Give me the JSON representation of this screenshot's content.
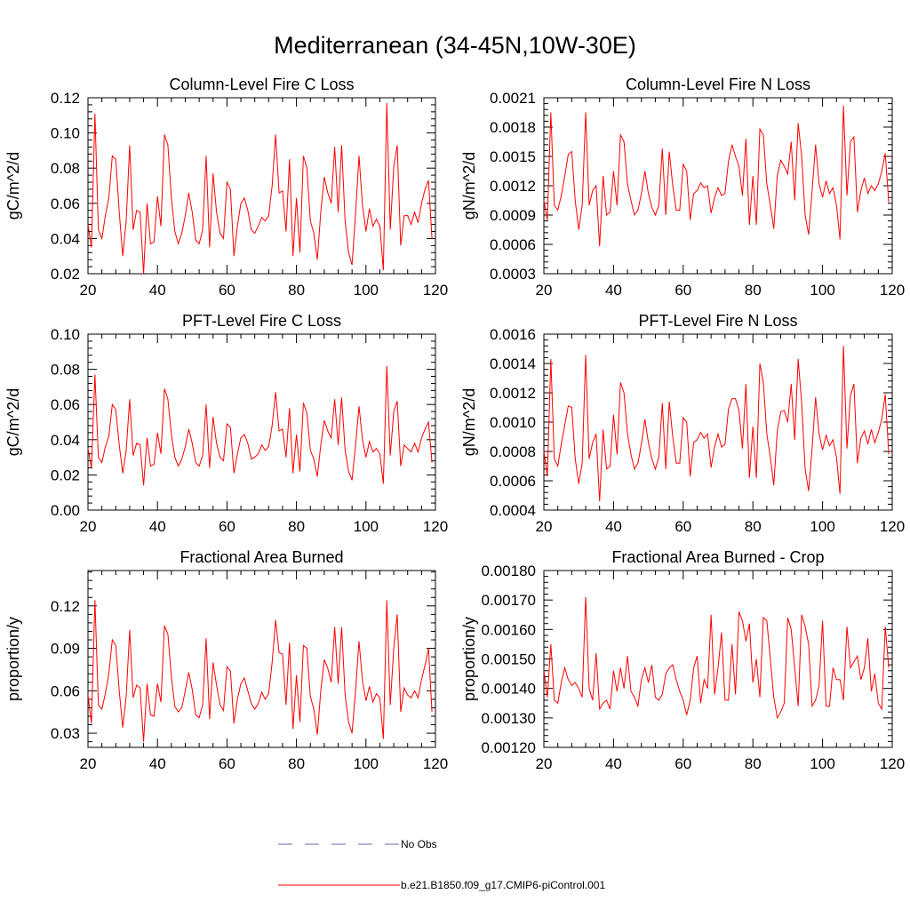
{
  "title": "Mediterranean (34-45N,10W-30E)",
  "legend": [
    {
      "label": "No Obs",
      "color": "#6a6ab0",
      "style": "dashed"
    },
    {
      "label": "b.e21.B1850.f09_g17.CMIP6-piControl.001",
      "color": "#ff0000",
      "style": "solid"
    }
  ],
  "chart_data": [
    {
      "type": "line",
      "title": "Column-Level Fire C Loss",
      "ylabel": "gC/m^2/d",
      "xlim": [
        20,
        120
      ],
      "ylim": [
        0.02,
        0.12
      ],
      "xticks": [
        20,
        40,
        60,
        80,
        100,
        120
      ],
      "yticks": [
        0.02,
        0.04,
        0.06,
        0.08,
        0.1,
        0.12
      ],
      "ytick_labels": [
        "0.02",
        "0.04",
        "0.06",
        "0.08",
        "0.10",
        "0.12"
      ],
      "color": "#ff0000",
      "x_start": 20,
      "values": [
        0.048,
        0.035,
        0.111,
        0.045,
        0.04,
        0.053,
        0.063,
        0.087,
        0.085,
        0.055,
        0.03,
        0.05,
        0.093,
        0.045,
        0.056,
        0.055,
        0.02,
        0.06,
        0.037,
        0.038,
        0.064,
        0.047,
        0.099,
        0.093,
        0.063,
        0.044,
        0.037,
        0.043,
        0.053,
        0.066,
        0.055,
        0.039,
        0.037,
        0.045,
        0.087,
        0.035,
        0.077,
        0.055,
        0.043,
        0.04,
        0.072,
        0.068,
        0.03,
        0.047,
        0.06,
        0.063,
        0.056,
        0.045,
        0.043,
        0.047,
        0.052,
        0.05,
        0.053,
        0.07,
        0.099,
        0.066,
        0.067,
        0.044,
        0.085,
        0.03,
        0.063,
        0.032,
        0.087,
        0.08,
        0.05,
        0.043,
        0.028,
        0.055,
        0.075,
        0.066,
        0.06,
        0.092,
        0.055,
        0.093,
        0.05,
        0.032,
        0.025,
        0.054,
        0.087,
        0.059,
        0.044,
        0.057,
        0.047,
        0.051,
        0.047,
        0.022,
        0.117,
        0.045,
        0.081,
        0.093,
        0.036,
        0.053,
        0.053,
        0.048,
        0.055,
        0.049,
        0.06,
        0.068,
        0.073,
        0.04
      ]
    },
    {
      "type": "line",
      "title": "Column-Level Fire N Loss",
      "ylabel": "gN/m^2/d",
      "xlim": [
        20,
        120
      ],
      "ylim": [
        0.0003,
        0.0021
      ],
      "xticks": [
        20,
        40,
        60,
        80,
        100,
        120
      ],
      "yticks": [
        0.0003,
        0.0006,
        0.0009,
        0.0012,
        0.0015,
        0.0018,
        0.0021
      ],
      "ytick_labels": [
        "0.0003",
        "0.0006",
        "0.0009",
        "0.0012",
        "0.0015",
        "0.0018",
        "0.0021"
      ],
      "color": "#ff0000",
      "x_start": 20,
      "values": [
        0.00105,
        0.00085,
        0.00195,
        0.001,
        0.00095,
        0.0011,
        0.0013,
        0.00152,
        0.00155,
        0.00105,
        0.00075,
        0.001,
        0.00195,
        0.001,
        0.00115,
        0.0012,
        0.00058,
        0.0013,
        0.0009,
        0.00093,
        0.00135,
        0.001,
        0.00172,
        0.00165,
        0.00122,
        0.00105,
        0.0009,
        0.00095,
        0.00112,
        0.00135,
        0.00112,
        0.00098,
        0.0009,
        0.001,
        0.00158,
        0.0009,
        0.00155,
        0.0012,
        0.00095,
        0.00095,
        0.00142,
        0.00135,
        0.00085,
        0.00112,
        0.00115,
        0.00123,
        0.00118,
        0.0012,
        0.00092,
        0.00108,
        0.00118,
        0.0011,
        0.00112,
        0.00145,
        0.00162,
        0.0015,
        0.0014,
        0.0011,
        0.00168,
        0.0008,
        0.0013,
        0.0008,
        0.00178,
        0.00172,
        0.00122,
        0.001,
        0.00076,
        0.0013,
        0.00146,
        0.0014,
        0.00132,
        0.00165,
        0.00105,
        0.00184,
        0.0015,
        0.0009,
        0.0007,
        0.00115,
        0.00162,
        0.00122,
        0.00108,
        0.00125,
        0.00112,
        0.00118,
        0.001,
        0.00065,
        0.00202,
        0.0011,
        0.00165,
        0.0017,
        0.00093,
        0.00115,
        0.00128,
        0.00112,
        0.0012,
        0.00115,
        0.00122,
        0.00135,
        0.00153,
        0.00103
      ]
    },
    {
      "type": "line",
      "title": "PFT-Level Fire C Loss",
      "ylabel": "gC/m^2/d",
      "xlim": [
        20,
        120
      ],
      "ylim": [
        0.0,
        0.1
      ],
      "xticks": [
        20,
        40,
        60,
        80,
        100,
        120
      ],
      "yticks": [
        0.0,
        0.02,
        0.04,
        0.06,
        0.08,
        0.1
      ],
      "ytick_labels": [
        "0.00",
        "0.02",
        "0.04",
        "0.06",
        "0.08",
        "0.10"
      ],
      "color": "#ff0000",
      "x_start": 20,
      "values": [
        0.035,
        0.024,
        0.077,
        0.03,
        0.027,
        0.036,
        0.042,
        0.06,
        0.057,
        0.037,
        0.021,
        0.034,
        0.063,
        0.031,
        0.038,
        0.037,
        0.014,
        0.041,
        0.025,
        0.026,
        0.044,
        0.032,
        0.069,
        0.063,
        0.043,
        0.03,
        0.025,
        0.029,
        0.036,
        0.046,
        0.038,
        0.027,
        0.025,
        0.031,
        0.06,
        0.024,
        0.053,
        0.038,
        0.03,
        0.028,
        0.049,
        0.047,
        0.021,
        0.032,
        0.041,
        0.043,
        0.038,
        0.029,
        0.03,
        0.032,
        0.037,
        0.034,
        0.036,
        0.048,
        0.067,
        0.045,
        0.046,
        0.03,
        0.058,
        0.021,
        0.043,
        0.022,
        0.061,
        0.055,
        0.034,
        0.029,
        0.019,
        0.037,
        0.051,
        0.045,
        0.041,
        0.063,
        0.037,
        0.064,
        0.034,
        0.022,
        0.017,
        0.037,
        0.059,
        0.04,
        0.03,
        0.039,
        0.033,
        0.035,
        0.032,
        0.015,
        0.082,
        0.031,
        0.056,
        0.062,
        0.025,
        0.037,
        0.035,
        0.033,
        0.038,
        0.033,
        0.041,
        0.046,
        0.05,
        0.027
      ]
    },
    {
      "type": "line",
      "title": "PFT-Level Fire N Loss",
      "ylabel": "gN/m^2/d",
      "xlim": [
        20,
        120
      ],
      "ylim": [
        0.0004,
        0.0016
      ],
      "xticks": [
        20,
        40,
        60,
        80,
        100,
        120
      ],
      "yticks": [
        0.0004,
        0.0006,
        0.0008,
        0.001,
        0.0012,
        0.0014,
        0.0016
      ],
      "ytick_labels": [
        "0.0004",
        "0.0006",
        "0.0008",
        "0.0010",
        "0.0012",
        "0.0014",
        "0.0016"
      ],
      "color": "#ff0000",
      "x_start": 20,
      "values": [
        0.0008,
        0.00063,
        0.00143,
        0.00075,
        0.0007,
        0.00085,
        0.00098,
        0.00111,
        0.0011,
        0.00075,
        0.00058,
        0.00072,
        0.00146,
        0.00075,
        0.00086,
        0.00092,
        0.00046,
        0.00095,
        0.00068,
        0.0007,
        0.00105,
        0.00078,
        0.00127,
        0.0012,
        0.00092,
        0.00078,
        0.00068,
        0.00072,
        0.00085,
        0.00102,
        0.00086,
        0.00075,
        0.00068,
        0.00076,
        0.00113,
        0.00068,
        0.00114,
        0.0009,
        0.00072,
        0.00072,
        0.00103,
        0.001,
        0.00063,
        0.00086,
        0.00088,
        0.00093,
        0.00089,
        0.00092,
        0.00069,
        0.00083,
        0.00092,
        0.00083,
        0.00085,
        0.00109,
        0.00116,
        0.00116,
        0.00108,
        0.00082,
        0.00126,
        0.00062,
        0.00097,
        0.00062,
        0.0014,
        0.00127,
        0.00092,
        0.00076,
        0.00057,
        0.00094,
        0.00107,
        0.00108,
        0.001,
        0.00126,
        0.00088,
        0.00143,
        0.00113,
        0.00068,
        0.00053,
        0.00082,
        0.00117,
        0.00092,
        0.00081,
        0.00091,
        0.00084,
        0.00088,
        0.00076,
        0.00051,
        0.00152,
        0.00082,
        0.00118,
        0.00126,
        0.00072,
        0.00089,
        0.00094,
        0.00085,
        0.00095,
        0.00086,
        0.00093,
        0.00102,
        0.00119,
        0.00078
      ]
    },
    {
      "type": "line",
      "title": "Fractional Area Burned",
      "ylabel": "proportion/y",
      "xlim": [
        20,
        120
      ],
      "ylim": [
        0.02,
        0.145
      ],
      "xticks": [
        20,
        40,
        60,
        80,
        100,
        120
      ],
      "yticks": [
        0.03,
        0.06,
        0.09,
        0.12
      ],
      "ytick_labels": [
        "0.03",
        "0.06",
        "0.09",
        "0.12"
      ],
      "color": "#ff0000",
      "x_start": 20,
      "values": [
        0.057,
        0.037,
        0.124,
        0.05,
        0.047,
        0.058,
        0.072,
        0.096,
        0.092,
        0.06,
        0.034,
        0.056,
        0.103,
        0.055,
        0.064,
        0.062,
        0.024,
        0.065,
        0.043,
        0.042,
        0.065,
        0.052,
        0.106,
        0.1,
        0.07,
        0.049,
        0.045,
        0.048,
        0.06,
        0.073,
        0.061,
        0.043,
        0.041,
        0.05,
        0.097,
        0.04,
        0.08,
        0.064,
        0.05,
        0.046,
        0.077,
        0.074,
        0.037,
        0.054,
        0.065,
        0.069,
        0.06,
        0.051,
        0.047,
        0.051,
        0.059,
        0.054,
        0.058,
        0.08,
        0.11,
        0.087,
        0.086,
        0.05,
        0.094,
        0.033,
        0.071,
        0.038,
        0.092,
        0.09,
        0.056,
        0.047,
        0.029,
        0.06,
        0.082,
        0.076,
        0.066,
        0.105,
        0.065,
        0.105,
        0.057,
        0.038,
        0.03,
        0.06,
        0.095,
        0.067,
        0.053,
        0.063,
        0.052,
        0.058,
        0.055,
        0.026,
        0.124,
        0.05,
        0.09,
        0.114,
        0.045,
        0.062,
        0.057,
        0.055,
        0.06,
        0.055,
        0.068,
        0.078,
        0.09,
        0.045
      ]
    },
    {
      "type": "line",
      "title": "Fractional Area Burned - Crop",
      "ylabel": "proportion/y",
      "xlim": [
        20,
        120
      ],
      "ylim": [
        0.0012,
        0.0018
      ],
      "xticks": [
        20,
        40,
        60,
        80,
        100,
        120
      ],
      "yticks": [
        0.0012,
        0.0013,
        0.0014,
        0.0015,
        0.0016,
        0.0017,
        0.0018
      ],
      "ytick_labels": [
        "0.00120",
        "0.00130",
        "0.00140",
        "0.00150",
        "0.00160",
        "0.00170",
        "0.00180"
      ],
      "color": "#ff0000",
      "x_start": 20,
      "values": [
        0.00146,
        0.00137,
        0.00155,
        0.00136,
        0.00135,
        0.00142,
        0.00147,
        0.00143,
        0.00141,
        0.00142,
        0.0014,
        0.00137,
        0.00171,
        0.0014,
        0.00136,
        0.00152,
        0.00133,
        0.00135,
        0.00136,
        0.00133,
        0.00146,
        0.00139,
        0.00147,
        0.0014,
        0.00151,
        0.00139,
        0.00137,
        0.00134,
        0.00143,
        0.00147,
        0.00142,
        0.00148,
        0.00137,
        0.00136,
        0.00138,
        0.00145,
        0.00147,
        0.00148,
        0.00143,
        0.00139,
        0.00136,
        0.00131,
        0.00136,
        0.00147,
        0.00151,
        0.00135,
        0.00143,
        0.0014,
        0.00165,
        0.00138,
        0.00147,
        0.00159,
        0.00136,
        0.00136,
        0.00155,
        0.00138,
        0.00166,
        0.00163,
        0.00156,
        0.00162,
        0.00142,
        0.0015,
        0.00137,
        0.00164,
        0.00163,
        0.0015,
        0.00137,
        0.0013,
        0.00132,
        0.00135,
        0.00164,
        0.0016,
        0.00147,
        0.00134,
        0.00165,
        0.00161,
        0.00155,
        0.00134,
        0.00136,
        0.00141,
        0.00163,
        0.00134,
        0.00134,
        0.00147,
        0.00143,
        0.00143,
        0.00136,
        0.00161,
        0.00147,
        0.00149,
        0.00151,
        0.00143,
        0.00147,
        0.00157,
        0.00139,
        0.00145,
        0.00135,
        0.00133,
        0.00161,
        0.00147
      ]
    }
  ]
}
